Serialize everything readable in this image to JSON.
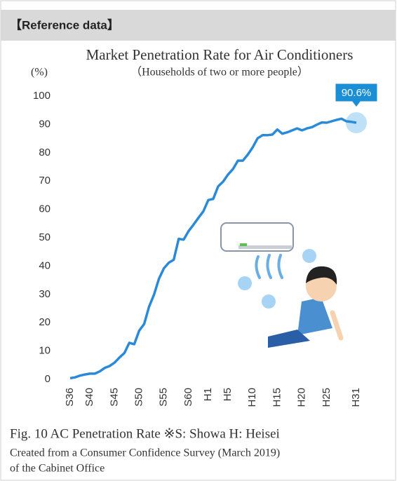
{
  "header": {
    "title": "【Reference data】"
  },
  "chart_data": {
    "type": "line",
    "title": "Market Penetration Rate for Air Conditioners",
    "subtitle": "（Households of two or more people）",
    "y_label": "(%)",
    "categories": [
      "S36",
      null,
      null,
      null,
      "S40",
      null,
      null,
      null,
      null,
      "S45",
      null,
      null,
      null,
      null,
      "S50",
      null,
      null,
      null,
      null,
      "S55",
      null,
      null,
      null,
      null,
      "S60",
      null,
      null,
      null,
      "H1",
      null,
      null,
      null,
      "H5",
      null,
      null,
      null,
      null,
      "H10",
      null,
      null,
      null,
      null,
      "H15",
      null,
      null,
      null,
      null,
      "H20",
      null,
      null,
      null,
      null,
      "H25",
      null,
      null,
      null,
      null,
      null,
      "H31"
    ],
    "values": [
      0.4,
      0.7,
      1.3,
      1.7,
      2.0,
      2.0,
      2.8,
      4.0,
      4.7,
      5.9,
      7.7,
      9.3,
      12.9,
      12.4,
      17.2,
      19.5,
      25.7,
      29.9,
      35.5,
      39.2,
      41.2,
      42.2,
      49.6,
      49.3,
      52.3,
      54.6,
      57.0,
      59.3,
      63.3,
      63.7,
      68.1,
      69.8,
      72.3,
      74.2,
      77.2,
      77.2,
      79.3,
      81.9,
      85.1,
      86.2,
      86.2,
      86.4,
      88.2,
      86.7,
      87.2,
      87.9,
      88.6,
      87.9,
      88.6,
      89.0,
      89.9,
      90.7,
      90.6,
      91.1,
      91.6,
      92.0,
      91.1,
      90.9,
      90.6
    ],
    "value_labels": [
      null,
      null,
      null,
      null,
      null,
      null,
      null,
      null,
      null,
      null,
      null,
      null,
      null,
      null,
      null,
      null,
      null,
      null,
      null,
      null,
      null,
      null,
      null,
      null,
      null,
      null,
      null,
      null,
      null,
      null,
      null,
      null,
      null,
      null,
      null,
      null,
      null,
      null,
      null,
      null,
      null,
      null,
      null,
      null,
      null,
      null,
      null,
      null,
      null,
      null,
      null,
      null,
      null,
      null,
      null,
      null,
      null,
      null,
      "90.6%"
    ],
    "color": "#2b8ad8",
    "ylim": [
      0,
      100
    ],
    "yticks": [
      0,
      10,
      20,
      30,
      40,
      50,
      60,
      70,
      80,
      90,
      100
    ]
  },
  "caption": {
    "line1": "Fig. 10  AC Penetration Rate  ※S: Showa H:  Heisei",
    "line2": "Created from a Consumer Confidence Survey (March 2019)",
    "line3": "of the Cabinet Office"
  }
}
